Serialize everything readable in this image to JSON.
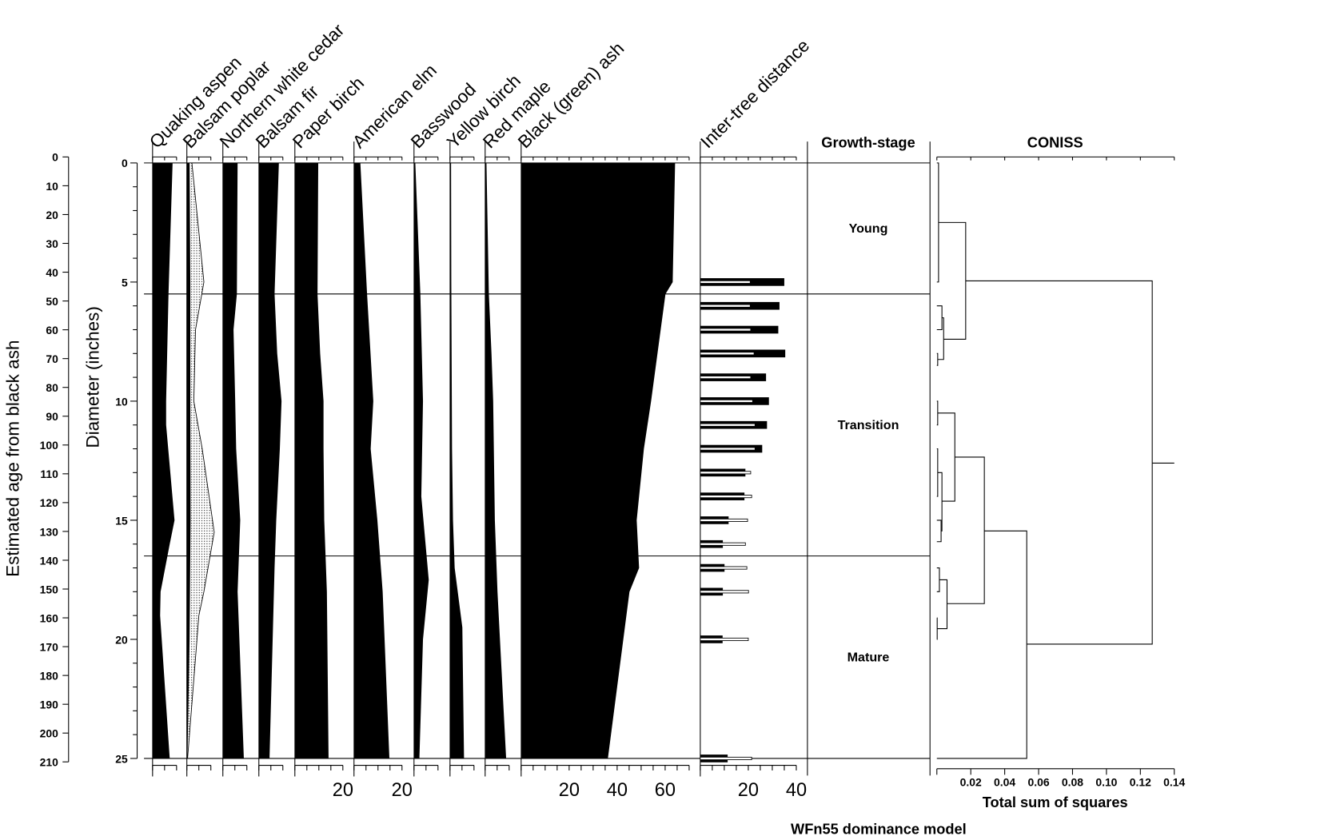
{
  "chart_data": {
    "type": "stratigraphic",
    "footer": "WFn55 dominance model",
    "y_axes": {
      "age": {
        "label": "Estimated age from black ash",
        "range": [
          0,
          210
        ],
        "tick_step": 10
      },
      "diameter": {
        "label": "Diameter (inches)",
        "range": [
          0,
          25
        ],
        "tick_step": 5
      }
    },
    "species": [
      {
        "name": "Quaking aspen",
        "axis_max": 10,
        "bottom_tick_labels": [],
        "values": [
          [
            0,
            8.2
          ],
          [
            5.5,
            6.5
          ],
          [
            10,
            5.5
          ],
          [
            11,
            5.5
          ],
          [
            15,
            9
          ],
          [
            16,
            7
          ],
          [
            18,
            3.2
          ],
          [
            19,
            3
          ],
          [
            25,
            7
          ]
        ]
      },
      {
        "name": "Balsam poplar",
        "axis_max": 10,
        "bottom_tick_labels": [],
        "values": [
          [
            0,
            1
          ],
          [
            5,
            1.3
          ],
          [
            10,
            1.3
          ],
          [
            15,
            1.4
          ],
          [
            20,
            1
          ],
          [
            25,
            0.1
          ]
        ],
        "exaggerated_values": [
          [
            0,
            2.1
          ],
          [
            5,
            7.1
          ],
          [
            7,
            3.6
          ],
          [
            10,
            2.9
          ],
          [
            12,
            6.4
          ],
          [
            15.5,
            11.4
          ],
          [
            18,
            7.1
          ],
          [
            19,
            5
          ],
          [
            25,
            0.3
          ]
        ]
      },
      {
        "name": "Northern white cedar",
        "axis_max": 10,
        "bottom_tick_labels": [],
        "values": [
          [
            0,
            6
          ],
          [
            5.5,
            5.7
          ],
          [
            7,
            4.3
          ],
          [
            10,
            5
          ],
          [
            12,
            5.4
          ],
          [
            15,
            7.1
          ],
          [
            18,
            6
          ],
          [
            25,
            8.6
          ]
        ]
      },
      {
        "name": "Balsam fir",
        "axis_max": 10,
        "bottom_tick_labels": [],
        "values": [
          [
            0,
            8.2
          ],
          [
            5.5,
            6.4
          ],
          [
            8,
            7.5
          ],
          [
            10,
            9.3
          ],
          [
            12,
            8.6
          ],
          [
            15,
            7.1
          ],
          [
            17,
            6.4
          ],
          [
            25,
            4.3
          ]
        ]
      },
      {
        "name": "Paper birch",
        "axis_max": 20,
        "bottom_tick_labels": [
          20
        ],
        "values": [
          [
            0,
            9.6
          ],
          [
            5.5,
            9.3
          ],
          [
            8,
            10.4
          ],
          [
            10,
            11.8
          ],
          [
            12,
            11.8
          ],
          [
            15,
            12.1
          ],
          [
            18,
            13.2
          ],
          [
            25,
            13.9
          ]
        ]
      },
      {
        "name": "American elm",
        "axis_max": 20,
        "bottom_tick_labels": [
          20
        ],
        "values": [
          [
            0,
            2.5
          ],
          [
            5.5,
            5.3
          ],
          [
            10,
            7.9
          ],
          [
            12,
            6.8
          ],
          [
            15,
            9.6
          ],
          [
            18,
            11.8
          ],
          [
            25,
            14.6
          ]
        ]
      },
      {
        "name": "Basswood",
        "axis_max": 10,
        "bottom_tick_labels": [],
        "values": [
          [
            0,
            0.4
          ],
          [
            5.5,
            2.5
          ],
          [
            10,
            3.6
          ],
          [
            14,
            2.9
          ],
          [
            17.5,
            6
          ],
          [
            20,
            3.6
          ],
          [
            25,
            2.1
          ]
        ]
      },
      {
        "name": "Yellow birch",
        "axis_max": 10,
        "bottom_tick_labels": [],
        "values": [
          [
            0,
            0.3
          ],
          [
            5,
            0.4
          ],
          [
            12,
            0.7
          ],
          [
            15,
            1.1
          ],
          [
            17,
            1.8
          ],
          [
            19.5,
            5
          ],
          [
            25,
            5.7
          ]
        ]
      },
      {
        "name": "Red maple",
        "axis_max": 10,
        "bottom_tick_labels": [],
        "values": [
          [
            0,
            0.4
          ],
          [
            5.5,
            1.4
          ],
          [
            8,
            2.5
          ],
          [
            10,
            3.2
          ],
          [
            15,
            3.9
          ],
          [
            18,
            5
          ],
          [
            25,
            8.6
          ]
        ]
      },
      {
        "name": "Black (green) ash",
        "axis_max": 70,
        "bottom_tick_labels": [
          20,
          40,
          60
        ],
        "values": [
          [
            0,
            64
          ],
          [
            5,
            63
          ],
          [
            5.5,
            60
          ],
          [
            7,
            58
          ],
          [
            10,
            54
          ],
          [
            12,
            51
          ],
          [
            15,
            48
          ],
          [
            17,
            49
          ],
          [
            18,
            45
          ],
          [
            25,
            36
          ]
        ]
      }
    ],
    "inter_tree_distance": {
      "name": "Inter-tree distance",
      "axis_max": 40,
      "bottom_tick_labels": [
        20,
        40
      ],
      "depths": [
        5,
        6,
        7,
        8,
        9,
        10,
        11,
        12,
        13,
        14,
        15,
        16,
        17,
        18,
        20,
        25
      ],
      "outer_values": [
        35,
        33,
        32.5,
        35.4,
        27.4,
        28.6,
        27.8,
        25.8,
        18.8,
        18.4,
        11.8,
        9.4,
        10.1,
        9.4,
        9.3,
        11.4
      ],
      "inner_values": [
        20.8,
        20.8,
        21,
        22.4,
        21,
        21.8,
        22.8,
        22.8,
        21,
        21.4,
        19.7,
        18.8,
        19.4,
        20.1,
        20,
        21.4
      ]
    },
    "growth_stage": {
      "title": "Growth-stage",
      "zones": [
        {
          "name": "Young",
          "from": 0,
          "to": 5.5
        },
        {
          "name": "Transition",
          "from": 5.5,
          "to": 16.5
        },
        {
          "name": "Mature",
          "from": 16.5,
          "to": 25
        }
      ]
    },
    "coniss": {
      "title": "CONISS",
      "xlabel": "Total sum of squares",
      "range": [
        0,
        0.14
      ],
      "tick_labels": [
        "0.02",
        "0.04",
        "0.06",
        "0.08",
        "0.10",
        "0.12",
        "0.14"
      ],
      "nodes": [
        {
          "top": 0,
          "bottom": 5,
          "ssq": 0.001,
          "top_child": 0,
          "bottom_child": 0
        },
        {
          "top": 6,
          "bottom": 7,
          "ssq": 0.003,
          "top_child": 0,
          "bottom_child": 0
        },
        {
          "top": 8,
          "bottom": 8.5,
          "ssq": 0.0005,
          "top_child": 0,
          "bottom_child": 0
        },
        {
          "top": 6.5,
          "bottom": 8.25,
          "ssq": 0.004,
          "top_child": 0.003,
          "bottom_child": 0.0005
        },
        {
          "top": 2.5,
          "bottom": 7.4,
          "ssq": 0.017,
          "top_child": 0.001,
          "bottom_child": 0.004
        },
        {
          "top": 10,
          "bottom": 11,
          "ssq": 0.0005,
          "top_child": 0,
          "bottom_child": 0
        },
        {
          "top": 12,
          "bottom": 14,
          "ssq": 0.0005,
          "top_child": 0,
          "bottom_child": 0
        },
        {
          "top": 15,
          "bottom": 15.9,
          "ssq": 0.0025,
          "top_child": 0,
          "bottom_child": 0
        },
        {
          "top": 13,
          "bottom": 15.45,
          "ssq": 0.003,
          "top_child": 0.0005,
          "bottom_child": 0.0025
        },
        {
          "top": 10.5,
          "bottom": 14.2,
          "ssq": 0.0106,
          "top_child": 0.0005,
          "bottom_child": 0.003
        },
        {
          "top": 17,
          "bottom": 18,
          "ssq": 0.0015,
          "top_child": 0,
          "bottom_child": 0
        },
        {
          "top": 19.1,
          "bottom": 20,
          "ssq": 0.0002,
          "top_child": 0,
          "bottom_child": 0
        },
        {
          "top": 17.5,
          "bottom": 19.55,
          "ssq": 0.006,
          "top_child": 0.0015,
          "bottom_child": 0.0002
        },
        {
          "top": 12.35,
          "bottom": 18.5,
          "ssq": 0.028,
          "top_child": 0.0106,
          "bottom_child": 0.006
        },
        {
          "top": 15.45,
          "bottom": 25,
          "ssq": 0.053,
          "top_child": 0.028,
          "bottom_child": 0
        },
        {
          "top": 4.95,
          "bottom": 20.2,
          "ssq": 0.127,
          "top_child": 0.017,
          "bottom_child": 0.053
        }
      ],
      "root": {
        "depth": 12.6,
        "ssq": 0.127
      }
    }
  }
}
